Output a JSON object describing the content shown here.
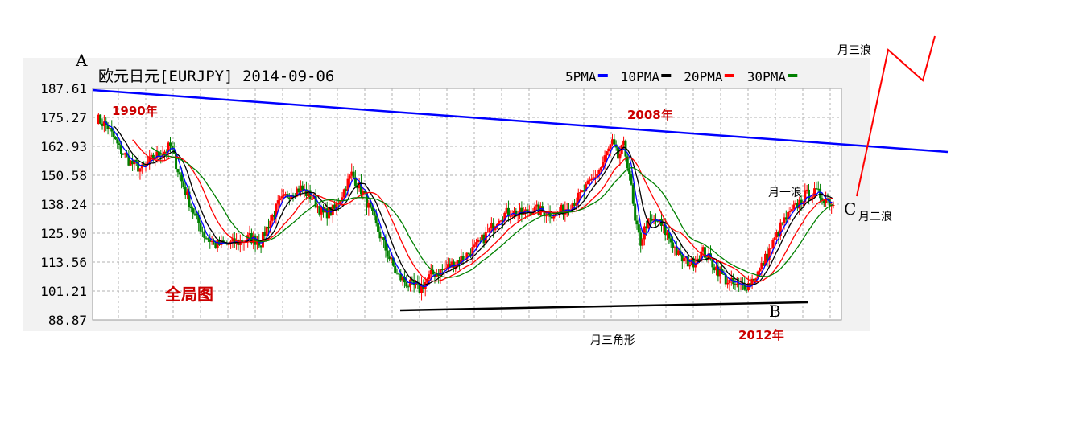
{
  "chart_data": {
    "type": "candlestick",
    "title": "欧元日元[EURJPY] 2014-09-06",
    "y_ticks": [
      "187.61",
      "175.27",
      "162.93",
      "150.58",
      "138.24",
      "125.90",
      "113.56",
      "101.21",
      "88.87"
    ],
    "ylim": [
      88.87,
      187.61
    ],
    "legend": [
      {
        "name": "5PMA",
        "color": "#0000ff"
      },
      {
        "name": "10PMA",
        "color": "#000000"
      },
      {
        "name": "20PMA",
        "color": "#ff0000"
      },
      {
        "name": "30PMA",
        "color": "#008000"
      }
    ],
    "up_color": "#ff0000",
    "down_color": "#008000",
    "close_path": [
      [
        0,
        175
      ],
      [
        2,
        171
      ],
      [
        4,
        162
      ],
      [
        6,
        156
      ],
      [
        8,
        153
      ],
      [
        10,
        158
      ],
      [
        12,
        161
      ],
      [
        13,
        163
      ],
      [
        15,
        148
      ],
      [
        17,
        135
      ],
      [
        19,
        125
      ],
      [
        21,
        121
      ],
      [
        23,
        121
      ],
      [
        25,
        122
      ],
      [
        27,
        124
      ],
      [
        29,
        122
      ],
      [
        30,
        128
      ],
      [
        32,
        138
      ],
      [
        34,
        143
      ],
      [
        36,
        145
      ],
      [
        38,
        141
      ],
      [
        40,
        134
      ],
      [
        42,
        136
      ],
      [
        44,
        146
      ],
      [
        45,
        151
      ],
      [
        47,
        143
      ],
      [
        49,
        131
      ],
      [
        51,
        119
      ],
      [
        53,
        108
      ],
      [
        55,
        104
      ],
      [
        57,
        102
      ],
      [
        59,
        108
      ],
      [
        61,
        110
      ],
      [
        63,
        113
      ],
      [
        65,
        116
      ],
      [
        67,
        120
      ],
      [
        69,
        126
      ],
      [
        71,
        133
      ],
      [
        73,
        135
      ],
      [
        75,
        134
      ],
      [
        77,
        136
      ],
      [
        79,
        135
      ],
      [
        81,
        134
      ],
      [
        83,
        137
      ],
      [
        85,
        141
      ],
      [
        87,
        147
      ],
      [
        89,
        154
      ],
      [
        90,
        160
      ],
      [
        91,
        164
      ],
      [
        92,
        158
      ],
      [
        93,
        163
      ],
      [
        94,
        152
      ],
      [
        95,
        130
      ],
      [
        96,
        122
      ],
      [
        97,
        130
      ],
      [
        99,
        131
      ],
      [
        101,
        124
      ],
      [
        103,
        115
      ],
      [
        105,
        113
      ],
      [
        107,
        118
      ],
      [
        109,
        112
      ],
      [
        111,
        106
      ],
      [
        113,
        103
      ],
      [
        115,
        104
      ],
      [
        117,
        110
      ],
      [
        119,
        120
      ],
      [
        121,
        130
      ],
      [
        123,
        136
      ],
      [
        125,
        142
      ],
      [
        127,
        143
      ],
      [
        129,
        140
      ],
      [
        130,
        138
      ]
    ],
    "annotations": {
      "point_a": "A",
      "point_b": "B",
      "point_c": "C",
      "label_1990": "1990年",
      "label_2008": "2008年",
      "label_2012": "2012年",
      "wave_one": "月一浪",
      "wave_two": "月二浪",
      "wave_three": "月三浪",
      "triangle": "月三角形",
      "overview": "全局图"
    }
  }
}
